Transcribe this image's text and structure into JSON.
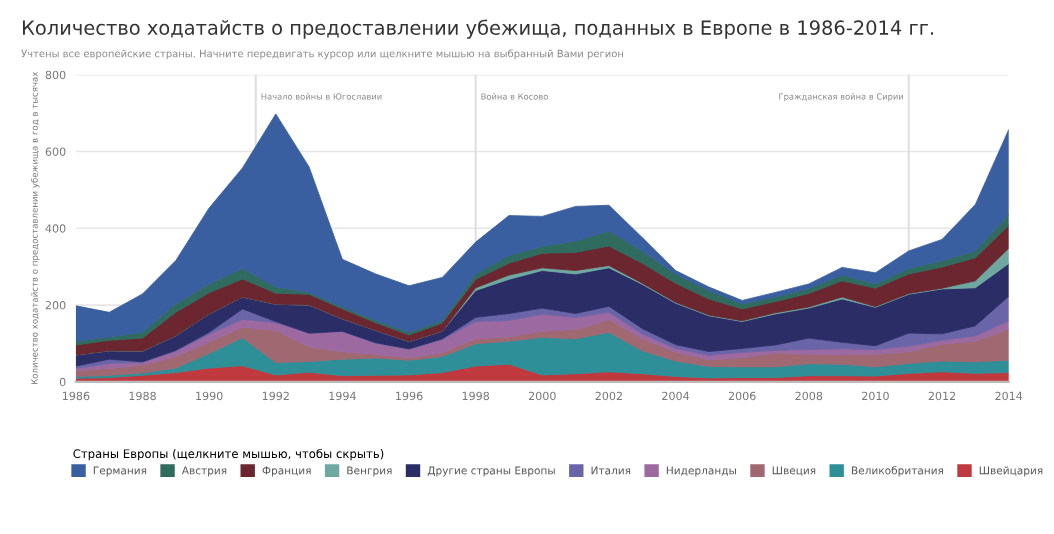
{
  "chart_data": {
    "type": "area",
    "stacked": true,
    "title": "Количество ходатайств о предоставлении убежища, поданных в Европе в 1986-2014 гг.",
    "subtitle": "Учтены все европейские страны. Начните передвигать курсор или щелкните мышью на выбранный Вами регион",
    "ylabel": "Количество ходатайств о предоставлении убежища в год в тысячах",
    "legend_title": "Страны Европы (щелкните мышью, чтобы скрыть)",
    "x": [
      1986,
      1987,
      1988,
      1989,
      1990,
      1991,
      1992,
      1993,
      1994,
      1995,
      1996,
      1997,
      1998,
      1999,
      2000,
      2001,
      2002,
      2003,
      2004,
      2005,
      2006,
      2007,
      2008,
      2009,
      2010,
      2011,
      2012,
      2013,
      2014
    ],
    "xlim": [
      1986,
      2014
    ],
    "xticks": [
      1986,
      1988,
      1990,
      1992,
      1994,
      1996,
      1998,
      2000,
      2002,
      2004,
      2006,
      2008,
      2010,
      2012,
      2014
    ],
    "ylim": [
      0,
      800
    ],
    "yticks": [
      0,
      200,
      400,
      600,
      800
    ],
    "grid": "y",
    "legend": "bottom",
    "series": [
      {
        "name": "Швейцария",
        "color": "#c0393f",
        "values": [
          9,
          11,
          17,
          24,
          36,
          42,
          18,
          25,
          16,
          17,
          18,
          24,
          41,
          46,
          18,
          21,
          26,
          21,
          14,
          10,
          11,
          11,
          16,
          16,
          15,
          22,
          26,
          22,
          24
        ]
      },
      {
        "name": "Великобритания",
        "color": "#2f8f98",
        "values": [
          5,
          6,
          6,
          12,
          38,
          73,
          32,
          28,
          43,
          45,
          38,
          42,
          58,
          60,
          98,
          91,
          103,
          60,
          40,
          30,
          28,
          28,
          31,
          30,
          24,
          26,
          28,
          30,
          32
        ]
      },
      {
        "name": "Швеция",
        "color": "#a06870",
        "values": [
          15,
          18,
          20,
          30,
          29,
          27,
          84,
          38,
          19,
          9,
          6,
          10,
          13,
          11,
          16,
          24,
          33,
          31,
          23,
          17,
          24,
          36,
          24,
          24,
          32,
          30,
          44,
          54,
          81
        ]
      },
      {
        "name": "Нидерланды",
        "color": "#9c6aa0",
        "values": [
          6,
          13,
          8,
          14,
          21,
          21,
          20,
          35,
          53,
          29,
          23,
          34,
          45,
          43,
          44,
          32,
          19,
          13,
          10,
          12,
          14,
          7,
          13,
          16,
          13,
          15,
          10,
          14,
          22
        ]
      },
      {
        "name": "Италия",
        "color": "#6a64a8",
        "values": [
          6,
          11,
          1,
          2,
          5,
          27,
          3,
          1,
          1,
          2,
          1,
          2,
          11,
          18,
          16,
          10,
          16,
          14,
          10,
          10,
          10,
          14,
          30,
          17,
          10,
          34,
          17,
          26,
          64
        ]
      },
      {
        "name": "Другие страны Европы",
        "color": "#2b2d66",
        "values": [
          29,
          22,
          28,
          38,
          48,
          31,
          45,
          73,
          32,
          32,
          19,
          20,
          70,
          89,
          98,
          103,
          100,
          115,
          108,
          93,
          70,
          81,
          78,
          113,
          100,
          101,
          117,
          99,
          85
        ]
      },
      {
        "name": "Венгрия",
        "color": "#6fa8a0",
        "values": [
          0,
          0,
          0,
          0,
          0,
          0,
          0,
          0,
          0,
          0,
          0,
          0,
          7,
          11,
          7,
          9,
          6,
          3,
          2,
          2,
          2,
          3,
          3,
          5,
          2,
          2,
          2,
          18,
          40
        ]
      },
      {
        "name": "Франция",
        "color": "#6b2630",
        "values": [
          26,
          27,
          34,
          61,
          55,
          47,
          29,
          28,
          26,
          20,
          17,
          21,
          22,
          31,
          38,
          47,
          51,
          52,
          50,
          42,
          31,
          29,
          35,
          42,
          48,
          51,
          55,
          60,
          60
        ]
      },
      {
        "name": "Австрия",
        "color": "#2f6b5e",
        "values": [
          9,
          9,
          15,
          22,
          23,
          27,
          16,
          5,
          5,
          6,
          7,
          7,
          14,
          20,
          18,
          30,
          39,
          32,
          24,
          22,
          13,
          12,
          13,
          15,
          11,
          14,
          17,
          18,
          28
        ]
      },
      {
        "name": "Германия",
        "color": "#3a5fa0",
        "values": [
          93,
          64,
          100,
          113,
          198,
          262,
          451,
          327,
          124,
          121,
          121,
          112,
          83,
          104,
          78,
          90,
          67,
          35,
          9,
          9,
          9,
          12,
          12,
          20,
          29,
          46,
          55,
          121,
          221
        ]
      }
    ],
    "ref_lines": [
      {
        "axis": "x",
        "value": 1991.4,
        "label": "Начало войны в Югославии"
      },
      {
        "axis": "x",
        "value": 1998,
        "label": "Война в Косово"
      },
      {
        "axis": "x",
        "value": 2011,
        "label": "Гражданская война в Сирии"
      }
    ]
  }
}
